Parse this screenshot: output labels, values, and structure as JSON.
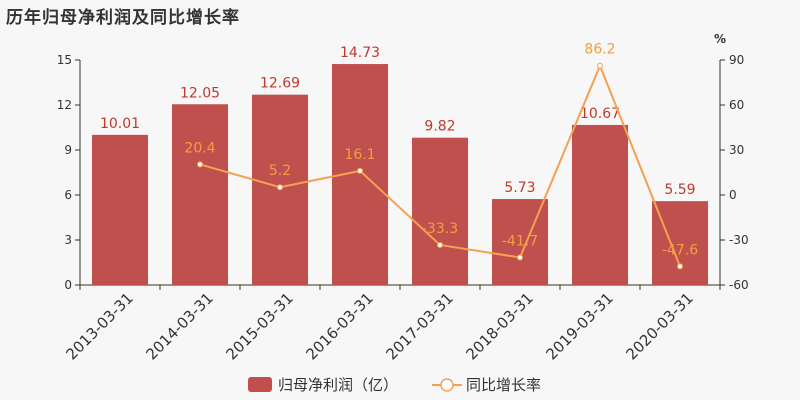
{
  "title": "历年归母净利润及同比增长率",
  "colors": {
    "bar": "#c0504d",
    "bar_label": "#c0392b",
    "line": "#f4a150",
    "line_label": "#f0a042",
    "axis": "#333333"
  },
  "chart_data": {
    "type": "bar",
    "categories": [
      "2013-03-31",
      "2014-03-31",
      "2015-03-31",
      "2016-03-31",
      "2017-03-31",
      "2018-03-31",
      "2019-03-31",
      "2020-03-31"
    ],
    "series": [
      {
        "name": "归母净利润（亿）",
        "type": "bar",
        "axis": "left",
        "values": [
          10.01,
          12.05,
          12.69,
          14.73,
          9.82,
          5.73,
          10.67,
          5.59
        ]
      },
      {
        "name": "同比增长率",
        "type": "line",
        "axis": "right",
        "values": [
          null,
          20.4,
          5.2,
          16.1,
          -33.3,
          -41.7,
          86.2,
          -47.6
        ]
      }
    ],
    "bar_labels": [
      "10.01",
      "12.05",
      "12.69",
      "14.73",
      "9.82",
      "5.73",
      "10.67",
      "5.59"
    ],
    "line_labels": [
      "",
      "20.4",
      "5.2",
      "16.1",
      "-33.3",
      "-41.7",
      "86.2",
      "-47.6"
    ],
    "left_axis": {
      "ylim": [
        0,
        15
      ],
      "ticks": [
        "0",
        "3",
        "6",
        "9",
        "12",
        "15"
      ]
    },
    "right_axis": {
      "ylim": [
        -60,
        90
      ],
      "ticks": [
        "-60",
        "-30",
        "0",
        "30",
        "60",
        "90"
      ],
      "unit": "%"
    },
    "legend_position": "bottom",
    "grid": false
  }
}
